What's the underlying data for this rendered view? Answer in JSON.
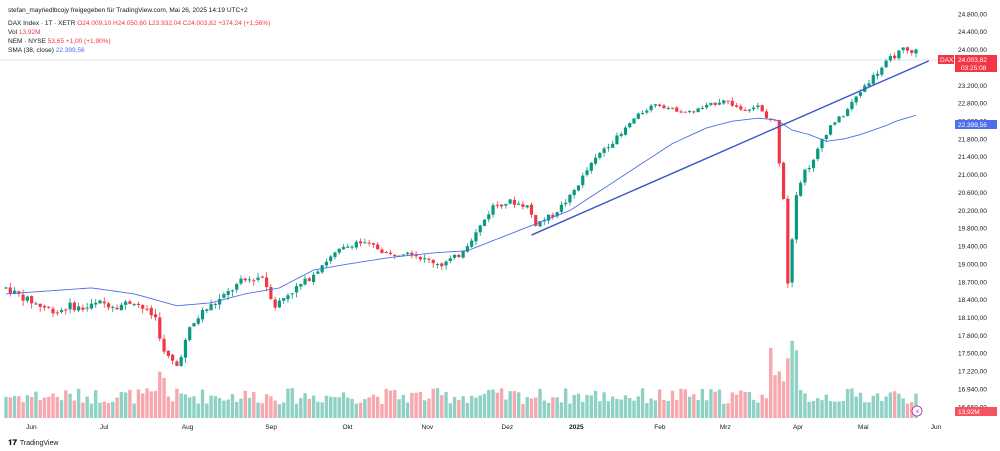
{
  "header": {
    "shared_by": "stefan_mayriedlbcojy freigegeben für TradingView.com, Mai 26, 2025 14:19 UTC+2",
    "instrument": "DAX Index · 1T · XETR",
    "ohlc": "O24.009,10 H24.050,60 L23.932,04 C24.003,82 +374,24 (+1,56%)",
    "vol_label": "Vol",
    "vol_value": "13,92M",
    "nem_label": "NEM · NYSE",
    "nem_value": "53,65 +1,00 (+1,90%)",
    "sma_label": "SMA (38, close)",
    "sma_value": "22.399,56"
  },
  "badges": {
    "dax_tag": "DAX",
    "dax_price": "24.003,82",
    "dax_time": "03:25:08",
    "sma_price": "22.399,56",
    "vol_price": "13,92M"
  },
  "footer": {
    "brand": "TradingView"
  },
  "colors": {
    "up": "#089981",
    "down": "#f23645",
    "sma": "#4d6ee8",
    "trend": "#3757c9",
    "vol_up": "#8fd1c4",
    "vol_down": "#f7a8ae"
  },
  "chart_data": {
    "type": "candlestick",
    "ylim": [
      16500,
      24800
    ],
    "y_ticks": [
      "16.660,00",
      "16.940,00",
      "17.220,00",
      "17.500,00",
      "17.800,00",
      "18.100,00",
      "18.400,00",
      "18.700,00",
      "19.000,00",
      "19.400,00",
      "19.800,00",
      "20.200,00",
      "20.600,00",
      "21.000,00",
      "21.400,00",
      "21.800,00",
      "22.200,00",
      "22.800,00",
      "23.200,00",
      "23.600,00",
      "24.000,00",
      "24.400,00",
      "24.800,00"
    ],
    "y_tick_values": [
      16660,
      16940,
      17220,
      17500,
      17800,
      18100,
      18400,
      18700,
      19000,
      19400,
      19800,
      20200,
      20600,
      21000,
      21400,
      21800,
      22200,
      22800,
      23200,
      23600,
      24000,
      24400,
      24800
    ],
    "x_ticks": [
      "Jun",
      "Jul",
      "Aug",
      "Sep",
      "Okt",
      "Nov",
      "Dez",
      "2025",
      "Feb",
      "Mrz",
      "Apr",
      "Mai",
      "Jun"
    ],
    "x_tick_bold": [
      false,
      false,
      false,
      false,
      false,
      false,
      false,
      true,
      false,
      false,
      false,
      false,
      false
    ],
    "price_path": [
      [
        0,
        18600
      ],
      [
        5,
        18400
      ],
      [
        8,
        18300
      ],
      [
        12,
        18200
      ],
      [
        15,
        18300
      ],
      [
        18,
        18250
      ],
      [
        22,
        18350
      ],
      [
        26,
        18300
      ],
      [
        30,
        18380
      ],
      [
        33,
        18200
      ],
      [
        35,
        18100
      ],
      [
        37,
        17500
      ],
      [
        40,
        17300
      ],
      [
        43,
        17900
      ],
      [
        46,
        18200
      ],
      [
        50,
        18400
      ],
      [
        55,
        18700
      ],
      [
        60,
        18800
      ],
      [
        63,
        18300
      ],
      [
        66,
        18500
      ],
      [
        70,
        18700
      ],
      [
        74,
        19000
      ],
      [
        78,
        19300
      ],
      [
        82,
        19500
      ],
      [
        86,
        19400
      ],
      [
        90,
        19200
      ],
      [
        94,
        19300
      ],
      [
        98,
        19100
      ],
      [
        102,
        19000
      ],
      [
        106,
        19200
      ],
      [
        110,
        19700
      ],
      [
        114,
        20300
      ],
      [
        118,
        20400
      ],
      [
        122,
        20300
      ],
      [
        124,
        19900
      ],
      [
        128,
        20100
      ],
      [
        132,
        20500
      ],
      [
        136,
        21100
      ],
      [
        140,
        21600
      ],
      [
        144,
        21900
      ],
      [
        148,
        22400
      ],
      [
        152,
        22800
      ],
      [
        156,
        22600
      ],
      [
        160,
        22500
      ],
      [
        164,
        22700
      ],
      [
        168,
        22900
      ],
      [
        172,
        22600
      ],
      [
        176,
        22700
      ],
      [
        178,
        22300
      ],
      [
        180,
        22200
      ],
      [
        181,
        21300
      ],
      [
        182,
        20500
      ],
      [
        183,
        18700
      ],
      [
        184,
        19600
      ],
      [
        185,
        20600
      ],
      [
        187,
        21100
      ],
      [
        189,
        21300
      ],
      [
        191,
        21800
      ],
      [
        193,
        22100
      ],
      [
        196,
        22400
      ],
      [
        198,
        22800
      ],
      [
        201,
        23200
      ],
      [
        204,
        23500
      ],
      [
        207,
        23800
      ],
      [
        210,
        24000
      ],
      [
        212,
        23900
      ],
      [
        213,
        24003.82
      ]
    ],
    "sma_path": [
      [
        0,
        18500
      ],
      [
        10,
        18550
      ],
      [
        20,
        18600
      ],
      [
        30,
        18500
      ],
      [
        40,
        18300
      ],
      [
        48,
        18350
      ],
      [
        56,
        18500
      ],
      [
        64,
        18600
      ],
      [
        72,
        18900
      ],
      [
        80,
        19000
      ],
      [
        90,
        19150
      ],
      [
        100,
        19250
      ],
      [
        108,
        19300
      ],
      [
        116,
        19600
      ],
      [
        124,
        19900
      ],
      [
        132,
        20200
      ],
      [
        140,
        20700
      ],
      [
        148,
        21200
      ],
      [
        156,
        21700
      ],
      [
        164,
        22050
      ],
      [
        170,
        22200
      ],
      [
        176,
        22300
      ],
      [
        180,
        22250
      ],
      [
        184,
        22000
      ],
      [
        188,
        21900
      ],
      [
        192,
        21750
      ],
      [
        196,
        21800
      ],
      [
        200,
        21900
      ],
      [
        206,
        22100
      ],
      [
        213,
        22399.56
      ]
    ],
    "trendline": {
      "from": [
        123,
        19650
      ],
      "to": [
        216,
        23750
      ]
    },
    "volume_scale_max": 100,
    "last_price": 24003.82,
    "sma_last": 22399.56
  }
}
